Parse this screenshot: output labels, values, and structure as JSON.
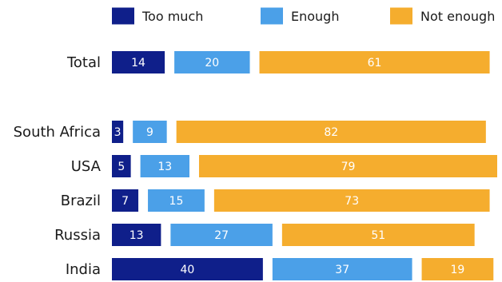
{
  "chart_data": {
    "type": "bar",
    "orientation": "horizontal",
    "stacked": true,
    "grid": false,
    "legend_position": "top",
    "title": "",
    "xlabel": "",
    "ylabel": "",
    "categories": [
      "Total",
      "South Africa",
      "USA",
      "Brazil",
      "Russia",
      "India"
    ],
    "series": [
      {
        "name": "Too much",
        "color": "#0f1f8a",
        "values": [
          14,
          3,
          5,
          7,
          13,
          40
        ]
      },
      {
        "name": "Enough",
        "color": "#4ba0e8",
        "values": [
          20,
          9,
          13,
          15,
          27,
          37
        ]
      },
      {
        "name": "Not enough",
        "color": "#f5ad2e",
        "values": [
          61,
          82,
          79,
          73,
          51,
          19
        ]
      }
    ],
    "value_labels": [
      [
        "14",
        "20",
        "61"
      ],
      [
        "3",
        "9",
        "82"
      ],
      [
        "5",
        "13",
        "79"
      ],
      [
        "7",
        "15",
        "73"
      ],
      [
        "13",
        "27",
        "51"
      ],
      [
        "40",
        "37",
        "19"
      ]
    ]
  }
}
